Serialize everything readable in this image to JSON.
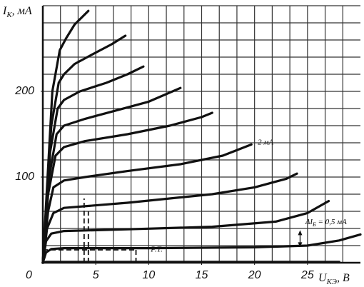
{
  "chart_data": {
    "type": "line",
    "y_label": {
      "main": "I",
      "sub": "K",
      "rest": ", мА"
    },
    "x_label": {
      "main": "U",
      "sub": "КЭ",
      "rest": ", В"
    },
    "origin_label": "0",
    "xlim": [
      0,
      30
    ],
    "ylim": [
      0,
      300
    ],
    "xticks": [
      5,
      10,
      15,
      20,
      25
    ],
    "yticks": [
      100,
      200
    ],
    "grid": true,
    "grid_step_x": 1.6667,
    "grid_step_y": 20,
    "color": "#111111",
    "series": [
      {
        "color": "#111111",
        "x": [
          0,
          0.3,
          5,
          15,
          28
        ],
        "values": [
          0,
          1,
          1,
          1,
          1
        ]
      },
      {
        "color": "#111111",
        "x": [
          0,
          0.3,
          0.8,
          2,
          10,
          20,
          25,
          28,
          30
        ],
        "values": [
          0,
          12,
          16,
          17,
          17,
          18,
          20,
          26,
          33
        ]
      },
      {
        "color": "#111111",
        "x": [
          0,
          0.3,
          0.8,
          2,
          8,
          16,
          22,
          25,
          27
        ],
        "values": [
          0,
          25,
          34,
          37,
          39,
          42,
          48,
          58,
          72
        ]
      },
      {
        "color": "#111111",
        "x": [
          0,
          0.4,
          1,
          2,
          8,
          16,
          20,
          23,
          24
        ],
        "values": [
          0,
          40,
          58,
          64,
          70,
          80,
          88,
          98,
          104
        ]
      },
      {
        "color": "#111111",
        "x": [
          0,
          0.5,
          1,
          2,
          4,
          8,
          13,
          17,
          19.7
        ],
        "values": [
          0,
          60,
          88,
          96,
          100,
          107,
          115,
          125,
          138
        ]
      },
      {
        "color": "#111111",
        "x": [
          0,
          0.5,
          1.2,
          2,
          4,
          8,
          12,
          15,
          16
        ],
        "values": [
          0,
          80,
          125,
          135,
          142,
          150,
          160,
          170,
          175
        ]
      },
      {
        "color": "#111111",
        "x": [
          0,
          0.6,
          1.3,
          2,
          4,
          7,
          10,
          13
        ],
        "values": [
          0,
          100,
          150,
          160,
          168,
          178,
          188,
          204
        ]
      },
      {
        "color": "#111111",
        "x": [
          0,
          0.7,
          1.4,
          2,
          3.5,
          6,
          8,
          9.5
        ],
        "values": [
          0,
          130,
          180,
          190,
          200,
          210,
          220,
          229
        ]
      },
      {
        "color": "#111111",
        "x": [
          0,
          0.8,
          1.5,
          2,
          3,
          4.5,
          6.5,
          7.8
        ],
        "values": [
          0,
          160,
          210,
          220,
          232,
          242,
          255,
          265
        ]
      },
      {
        "color": "#111111",
        "x": [
          0,
          0.9,
          1.6,
          2.2,
          3,
          4.3
        ],
        "values": [
          0,
          200,
          248,
          262,
          278,
          294
        ]
      }
    ],
    "dashes": [
      {
        "x": [
          3.9,
          3.9
        ],
        "y": [
          0,
          75
        ]
      },
      {
        "x": [
          4.3,
          4.3
        ],
        "y": [
          0,
          60
        ]
      },
      {
        "x": [
          8.8,
          8.8
        ],
        "y": [
          0,
          15
        ]
      },
      {
        "x": [
          0,
          8.8
        ],
        "y": [
          15,
          15
        ]
      }
    ],
    "annotations": [
      {
        "text": "2 мА",
        "x": 20.3,
        "y": 138
      },
      {
        "text": "Р.Т.",
        "x": 10.2,
        "y": 13
      }
    ],
    "delta_label": {
      "main": "ΔI",
      "sub": "Б",
      "rest": " = 0,5 мА",
      "x": 24.8,
      "y": 45
    },
    "delta_arrow": {
      "x": 24.3,
      "y": [
        38,
        18
      ]
    }
  }
}
